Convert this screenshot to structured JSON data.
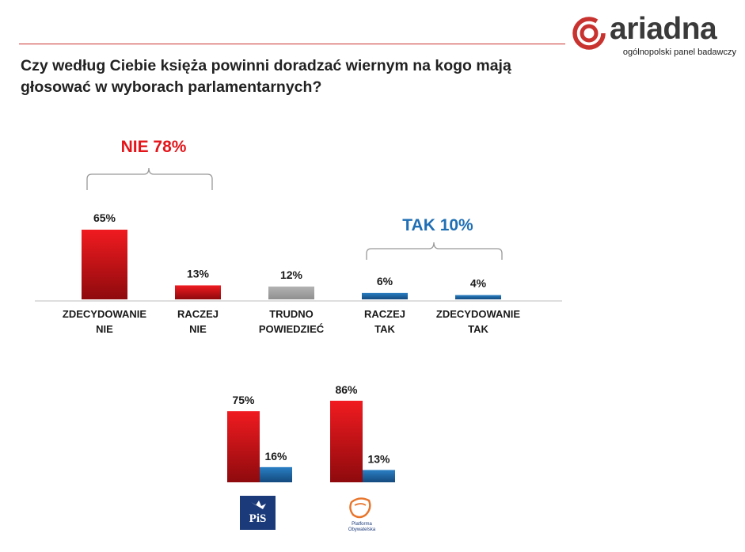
{
  "header": {
    "logo_word": "ariadna",
    "logo_subtitle": "ogólnopolski panel badawczy",
    "question": "Czy według Ciebie księża powinni doradzać wiernym na kogo mają głosować w wyborach parlamentarnych?"
  },
  "colors": {
    "red": "#e3151a",
    "red_dark": "#8e0a0d",
    "blue": "#1f6fb4",
    "blue_dark": "#144a7e",
    "gray": "#a6a6a6",
    "brand": "#c8322f"
  },
  "groups": {
    "nie": "NIE 78%",
    "tak": "TAK 10%"
  },
  "chart_data": [
    {
      "type": "bar",
      "categories": [
        "ZDECYDOWANIE NIE",
        "RACZEJ NIE",
        "TRUDNO POWIEDZIEĆ",
        "RACZEJ TAK",
        "ZDECYDOWANIE TAK"
      ],
      "category_lines": [
        [
          "ZDECYDOWANIE",
          "NIE"
        ],
        [
          "RACZEJ",
          "NIE"
        ],
        [
          "TRUDNO",
          "POWIEDZIEĆ"
        ],
        [
          "RACZEJ",
          "TAK"
        ],
        [
          "ZDECYDOWANIE",
          "TAK"
        ]
      ],
      "values": [
        65,
        13,
        12,
        6,
        4
      ],
      "data_labels": [
        "65%",
        "13%",
        "12%",
        "6%",
        "4%"
      ],
      "bar_colors": [
        "red",
        "red",
        "gray",
        "blue",
        "blue"
      ],
      "ylim": [
        0,
        65
      ],
      "grid": false
    },
    {
      "type": "bar",
      "categories": [
        "PiS",
        "Platforma Obywatelska"
      ],
      "series": [
        {
          "values": [
            75,
            86
          ],
          "data_labels": [
            "75%",
            "86%"
          ],
          "color": "red"
        },
        {
          "values": [
            16,
            13
          ],
          "data_labels": [
            "16%",
            "13%"
          ],
          "color": "blue"
        }
      ],
      "ylim": [
        0,
        86
      ],
      "grid": false
    }
  ],
  "party_logos": {
    "pis": {
      "icon": "pis-logo",
      "text": "PiS"
    },
    "po": {
      "icon": "platforma-obywatelska-logo",
      "text_lines": [
        "Platforma",
        "Obywatelska"
      ]
    }
  }
}
